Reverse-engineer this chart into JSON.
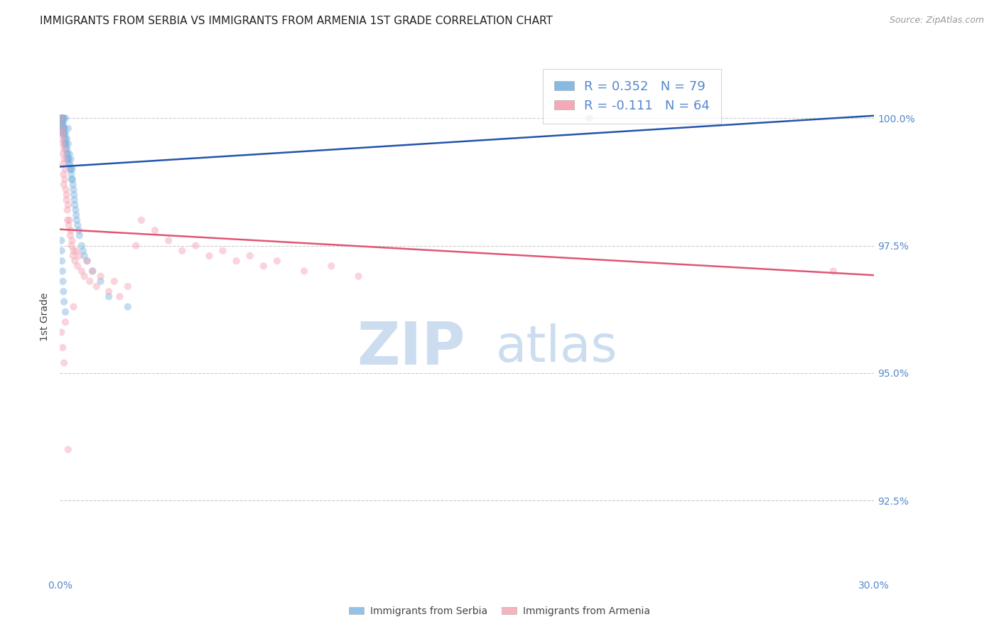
{
  "title": "IMMIGRANTS FROM SERBIA VS IMMIGRANTS FROM ARMENIA 1ST GRADE CORRELATION CHART",
  "source": "Source: ZipAtlas.com",
  "ylabel": "1st Grade",
  "ytick_values": [
    92.5,
    95.0,
    97.5,
    100.0
  ],
  "xlim": [
    0.0,
    30.0
  ],
  "ylim": [
    91.0,
    101.2
  ],
  "serbia_color": "#7ab3e0",
  "armenia_color": "#f4a0b0",
  "serbia_line_color": "#2255aa",
  "armenia_line_color": "#e05575",
  "legend_r_serbia": "R = 0.352",
  "legend_n_serbia": "N = 79",
  "legend_r_armenia": "R = -0.111",
  "legend_n_armenia": "N = 64",
  "serbia_x": [
    0.05,
    0.05,
    0.05,
    0.05,
    0.05,
    0.07,
    0.07,
    0.08,
    0.08,
    0.09,
    0.1,
    0.1,
    0.1,
    0.1,
    0.1,
    0.11,
    0.12,
    0.12,
    0.13,
    0.14,
    0.15,
    0.15,
    0.16,
    0.17,
    0.18,
    0.18,
    0.19,
    0.2,
    0.2,
    0.2,
    0.22,
    0.23,
    0.25,
    0.25,
    0.26,
    0.27,
    0.28,
    0.3,
    0.3,
    0.3,
    0.32,
    0.33,
    0.35,
    0.36,
    0.38,
    0.4,
    0.4,
    0.42,
    0.44,
    0.45,
    0.46,
    0.48,
    0.5,
    0.52,
    0.53,
    0.55,
    0.58,
    0.6,
    0.62,
    0.65,
    0.7,
    0.72,
    0.8,
    0.85,
    0.9,
    1.0,
    1.2,
    1.5,
    1.8,
    2.5,
    0.05,
    0.06,
    0.07,
    0.09,
    0.11,
    0.13,
    0.15,
    0.2,
    19.5
  ],
  "serbia_y": [
    100.0,
    100.0,
    100.0,
    99.9,
    99.8,
    100.0,
    99.9,
    100.0,
    99.8,
    100.0,
    100.0,
    100.0,
    100.0,
    99.9,
    99.7,
    99.8,
    99.9,
    99.7,
    99.8,
    99.7,
    100.0,
    99.8,
    99.7,
    99.8,
    99.6,
    99.5,
    99.6,
    100.0,
    99.7,
    99.5,
    99.5,
    99.4,
    99.6,
    99.4,
    99.3,
    99.2,
    99.3,
    99.8,
    99.5,
    99.2,
    99.2,
    99.1,
    99.3,
    99.1,
    99.0,
    99.2,
    99.0,
    98.9,
    98.8,
    99.0,
    98.8,
    98.7,
    98.6,
    98.5,
    98.4,
    98.3,
    98.2,
    98.1,
    98.0,
    97.9,
    97.8,
    97.7,
    97.5,
    97.4,
    97.3,
    97.2,
    97.0,
    96.8,
    96.5,
    96.3,
    97.6,
    97.4,
    97.2,
    97.0,
    96.8,
    96.6,
    96.4,
    96.2,
    100.0
  ],
  "armenia_x": [
    0.05,
    0.07,
    0.08,
    0.09,
    0.1,
    0.11,
    0.12,
    0.13,
    0.14,
    0.15,
    0.17,
    0.18,
    0.2,
    0.22,
    0.24,
    0.25,
    0.27,
    0.28,
    0.3,
    0.32,
    0.35,
    0.38,
    0.4,
    0.42,
    0.45,
    0.48,
    0.5,
    0.55,
    0.6,
    0.65,
    0.7,
    0.8,
    0.9,
    1.0,
    1.1,
    1.2,
    1.35,
    1.5,
    1.8,
    2.0,
    2.2,
    2.5,
    2.8,
    3.0,
    3.5,
    4.0,
    4.5,
    5.0,
    5.5,
    6.0,
    6.5,
    7.0,
    7.5,
    8.0,
    9.0,
    10.0,
    11.0,
    28.5,
    0.05,
    0.1,
    0.15,
    0.2,
    0.3,
    0.5
  ],
  "armenia_y": [
    100.0,
    99.8,
    99.6,
    99.5,
    99.7,
    99.3,
    99.1,
    98.9,
    98.7,
    99.4,
    99.2,
    98.8,
    99.0,
    98.6,
    98.4,
    98.5,
    98.2,
    98.0,
    98.3,
    97.9,
    98.0,
    97.7,
    97.8,
    97.5,
    97.6,
    97.3,
    97.4,
    97.2,
    97.4,
    97.1,
    97.3,
    97.0,
    96.9,
    97.2,
    96.8,
    97.0,
    96.7,
    96.9,
    96.6,
    96.8,
    96.5,
    96.7,
    97.5,
    98.0,
    97.8,
    97.6,
    97.4,
    97.5,
    97.3,
    97.4,
    97.2,
    97.3,
    97.1,
    97.2,
    97.0,
    97.1,
    96.9,
    97.0,
    95.8,
    95.5,
    95.2,
    96.0,
    93.5,
    96.3
  ],
  "background_color": "#ffffff",
  "grid_color": "#cccccc",
  "tick_color": "#5588cc",
  "title_fontsize": 11,
  "axis_label_fontsize": 10,
  "tick_fontsize": 10,
  "legend_fontsize": 13,
  "source_fontsize": 9,
  "marker_size": 55,
  "marker_alpha": 0.45,
  "watermark_color": "#ccddf0",
  "watermark_fontsize": 60,
  "serbia_trend_x0": 0.0,
  "serbia_trend_x1": 30.0,
  "serbia_trend_y0": 99.05,
  "serbia_trend_y1": 100.05,
  "armenia_trend_x0": 0.0,
  "armenia_trend_x1": 30.0,
  "armenia_trend_y0": 97.82,
  "armenia_trend_y1": 96.92
}
